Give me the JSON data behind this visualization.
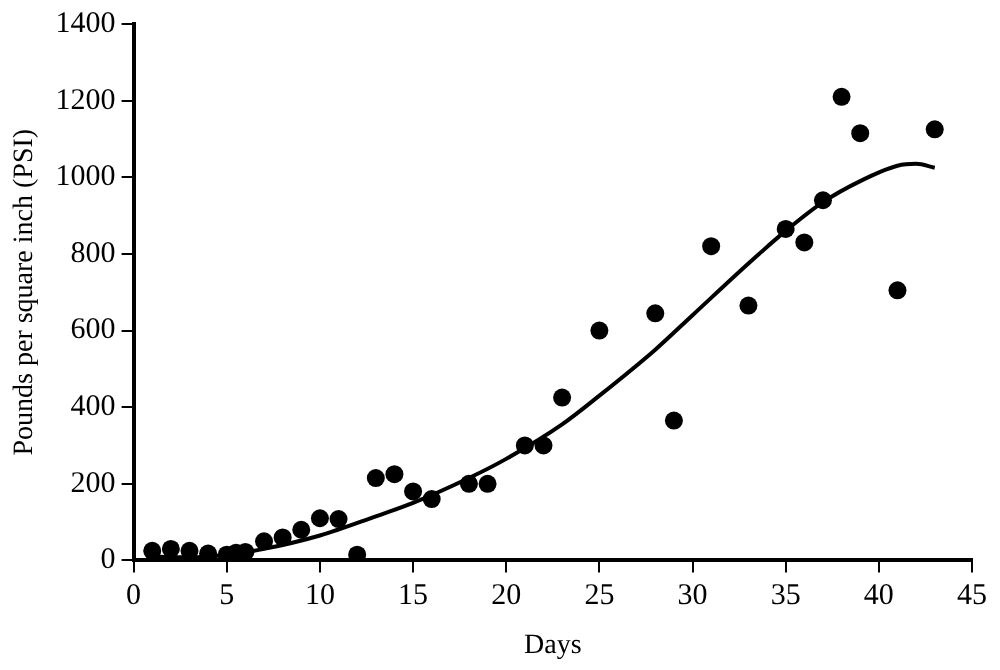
{
  "chart_data": {
    "type": "scatter",
    "xlabel": "Days",
    "ylabel": "Pounds per square inch (PSI)",
    "xlim": [
      0,
      45
    ],
    "xticks": [
      0,
      5,
      10,
      15,
      20,
      25,
      30,
      35,
      40,
      45
    ],
    "ylim": [
      0,
      1400
    ],
    "yticks": [
      0,
      200,
      400,
      600,
      800,
      1000,
      1200,
      1400
    ],
    "grid": false,
    "legend": false,
    "series": [
      {
        "color": "#000000",
        "marker": "circle",
        "x": [
          1,
          2,
          3,
          4,
          5,
          5.5,
          6,
          7,
          8,
          9,
          10,
          11,
          12,
          13,
          14,
          15,
          16,
          18,
          19,
          21,
          22,
          23,
          25,
          28,
          29,
          31,
          33,
          35,
          36,
          37,
          38,
          39,
          41,
          43
        ],
        "values": [
          25,
          30,
          25,
          18,
          15,
          20,
          22,
          50,
          60,
          80,
          110,
          108,
          15,
          215,
          225,
          180,
          160,
          200,
          200,
          300,
          300,
          425,
          600,
          645,
          365,
          820,
          665,
          865,
          830,
          940,
          1210,
          1115,
          705,
          1125
        ]
      },
      {
        "type": "line",
        "color": "#000000",
        "marker": "none",
        "line_style": "solid",
        "x": [
          1,
          3,
          5,
          7,
          10,
          13,
          15,
          18,
          20,
          23,
          25,
          28,
          30,
          33,
          35,
          37,
          39,
          41,
          42,
          43
        ],
        "values": [
          10,
          8,
          15,
          30,
          65,
          115,
          150,
          215,
          265,
          355,
          430,
          550,
          640,
          775,
          860,
          935,
          990,
          1030,
          1035,
          1025
        ]
      }
    ]
  }
}
